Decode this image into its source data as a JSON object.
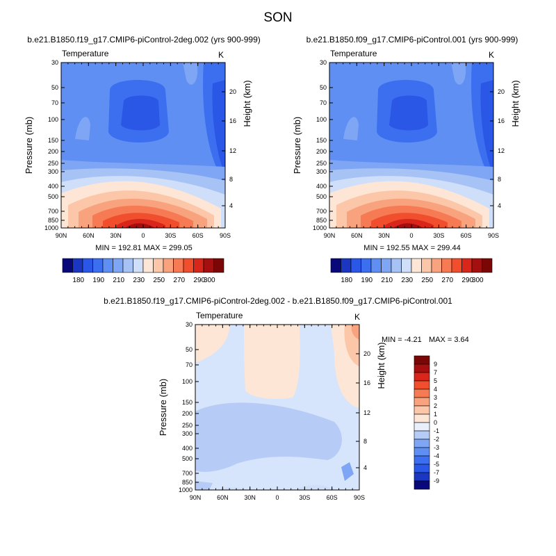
{
  "page_title": "SON",
  "colors": {
    "diverging_scale": [
      "#08087a",
      "#1b36c0",
      "#2a57e6",
      "#3c6ff0",
      "#5f8ff2",
      "#7fa6f4",
      "#a7c3f6",
      "#cfdef9",
      "#fde6d6",
      "#fcc6a9",
      "#f9a37e",
      "#f67b54",
      "#f04e2c",
      "#d8261b",
      "#a40f10",
      "#7a0606"
    ],
    "abs_levels": [
      "bg",
      "c1",
      "c2",
      "c3",
      "c4",
      "c5",
      "c6",
      "c7",
      "c8",
      "c9",
      "c10",
      "c11",
      "c12"
    ]
  },
  "panels": [
    {
      "id": "left",
      "title": "b.e21.B1850.f19_g17.CMIP6-piControl-2deg.002 (yrs 900-999)",
      "var_label": "Temperature",
      "unit": "K",
      "ylabel": "Pressure (mb)",
      "ylabel_right": "Height (km)",
      "stats": "MIN = 192.81   MAX = 299.05"
    },
    {
      "id": "right",
      "title": "b.e21.B1850.f09_g17.CMIP6-piControl.001 (yrs 900-999)",
      "var_label": "Temperature",
      "unit": "K",
      "ylabel": "Pressure (mb)",
      "ylabel_right": "Height (km)",
      "stats": "MIN = 192.55   MAX = 299.44"
    }
  ],
  "diff_panel": {
    "title": "b.e21.B1850.f19_g17.CMIP6-piControl-2deg.002 - b.e21.B1850.f09_g17.CMIP6-piControl.001",
    "var_label": "Temperature",
    "unit": "K",
    "ylabel": "Pressure (mb)",
    "ylabel_right": "Height (km)",
    "stats_min": "MIN =  -4.21",
    "stats_max": "MAX =   3.64"
  },
  "chart_data": [
    {
      "type": "heatmap",
      "title": "b.e21.B1850.f19_g17.CMIP6-piControl-2deg.002 (yrs 900-999)",
      "variable": "Temperature",
      "units": "K",
      "x_ticks": [
        "90N",
        "60N",
        "30N",
        "0",
        "30S",
        "60S",
        "90S"
      ],
      "y_ticks": [
        "30",
        "50",
        "70",
        "100",
        "150",
        "200",
        "250",
        "300",
        "400",
        "500",
        "700",
        "850",
        "1000"
      ],
      "y_right_ticks": [
        "20",
        "16",
        "12",
        "8",
        "4"
      ],
      "xlabel": "",
      "ylabel": "Pressure (mb)",
      "ylabel_right": "Height (km)",
      "min": 192.81,
      "max": 299.05,
      "colorbar_labels": [
        "180",
        "190",
        "210",
        "230",
        "250",
        "270",
        "290",
        "300"
      ]
    },
    {
      "type": "heatmap",
      "title": "b.e21.B1850.f09_g17.CMIP6-piControl.001 (yrs 900-999)",
      "variable": "Temperature",
      "units": "K",
      "x_ticks": [
        "90N",
        "60N",
        "30N",
        "0",
        "30S",
        "60S",
        "90S"
      ],
      "y_ticks": [
        "30",
        "50",
        "70",
        "100",
        "150",
        "200",
        "250",
        "300",
        "400",
        "500",
        "700",
        "850",
        "1000"
      ],
      "y_right_ticks": [
        "20",
        "16",
        "12",
        "8",
        "4"
      ],
      "xlabel": "",
      "ylabel": "Pressure (mb)",
      "ylabel_right": "Height (km)",
      "min": 192.55,
      "max": 299.44,
      "colorbar_labels": [
        "180",
        "190",
        "210",
        "230",
        "250",
        "270",
        "290",
        "300"
      ]
    },
    {
      "type": "heatmap",
      "title": "b.e21.B1850.f19_g17.CMIP6-piControl-2deg.002 - b.e21.B1850.f09_g17.CMIP6-piControl.001",
      "variable": "Temperature",
      "units": "K",
      "x_ticks": [
        "90N",
        "60N",
        "30N",
        "0",
        "30S",
        "60S",
        "90S"
      ],
      "y_ticks": [
        "30",
        "50",
        "70",
        "100",
        "150",
        "200",
        "250",
        "300",
        "400",
        "500",
        "700",
        "850",
        "1000"
      ],
      "y_right_ticks": [
        "20",
        "16",
        "12",
        "8",
        "4"
      ],
      "xlabel": "",
      "ylabel": "Pressure (mb)",
      "ylabel_right": "Height (km)",
      "min": -4.21,
      "max": 3.64,
      "colorbar_labels": [
        "9",
        "7",
        "5",
        "4",
        "3",
        "2",
        "1",
        "0",
        "-1",
        "-2",
        "-3",
        "-4",
        "-5",
        "-7",
        "-9"
      ]
    }
  ]
}
